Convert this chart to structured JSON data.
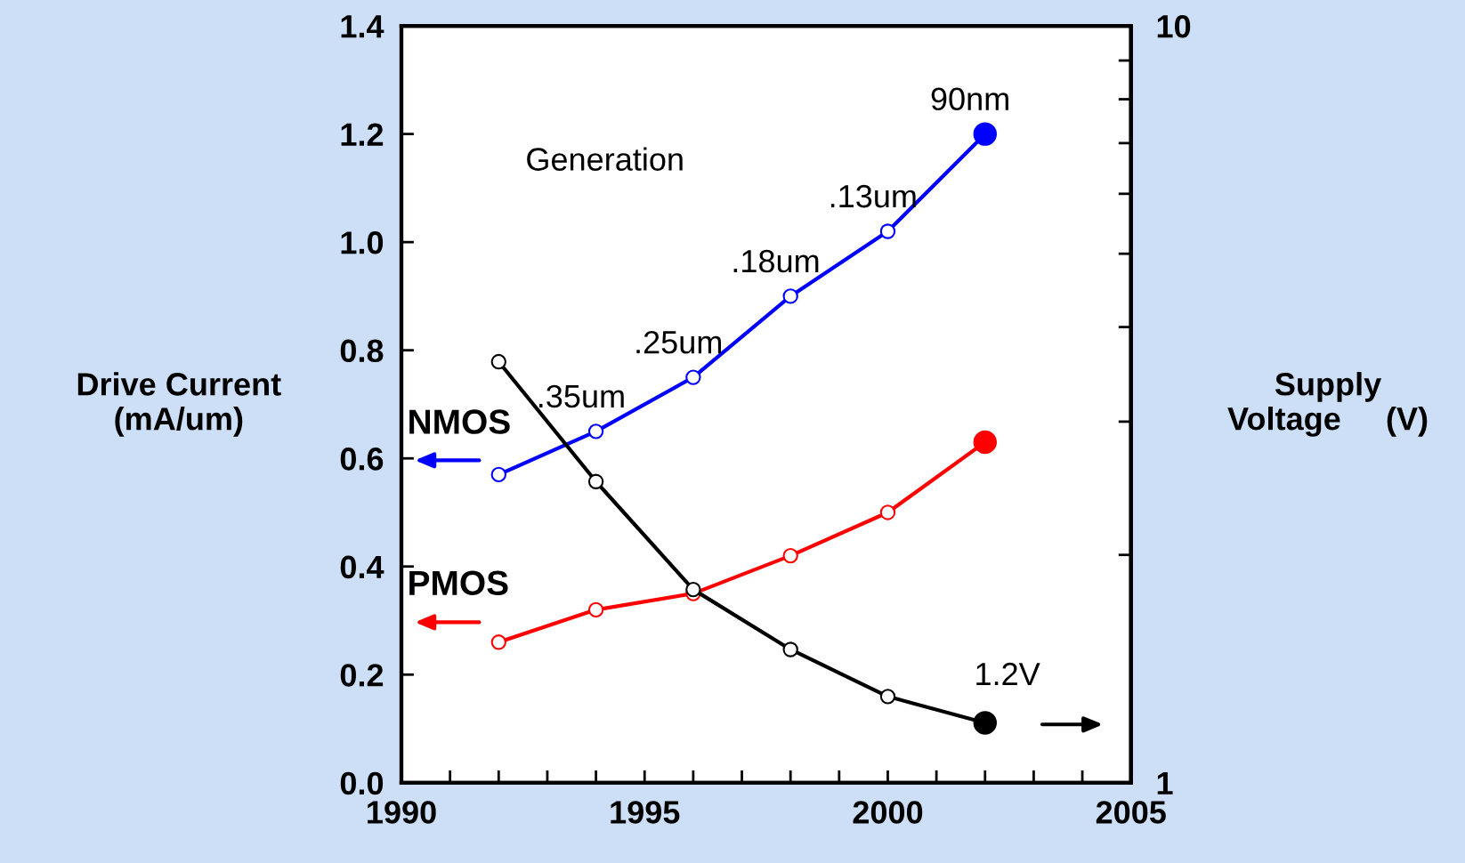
{
  "chart_data": {
    "type": "line",
    "ylabel": "Drive Current\n(mA/um)",
    "y2label": "Supply\nVoltage     (V)",
    "x": [
      1992,
      1994,
      1996,
      1998,
      2000,
      2002
    ],
    "series": [
      {
        "name": "NMOS",
        "color": "#0000ff",
        "values": [
          0.57,
          0.65,
          0.75,
          0.9,
          1.02,
          1.2
        ]
      },
      {
        "name": "PMOS",
        "color": "#ff0000",
        "values": [
          0.26,
          0.32,
          0.35,
          0.42,
          0.5,
          0.63
        ]
      },
      {
        "color": "#000000",
        "axis": "y2",
        "values": [
          3.6,
          2.5,
          1.8,
          1.5,
          1.3,
          1.2
        ]
      }
    ],
    "xlim": [
      1990,
      2005
    ],
    "xticks": [
      1990,
      {
        "value": 1991,
        "label": null
      },
      {
        "value": 1992,
        "label": null
      },
      {
        "value": 1993,
        "label": null
      },
      {
        "value": 1994,
        "label": null
      },
      1995,
      {
        "value": 1996,
        "label": null
      },
      {
        "value": 1997,
        "label": null
      },
      {
        "value": 1998,
        "label": null
      },
      {
        "value": 1999,
        "label": null
      },
      2000,
      {
        "value": 2001,
        "label": null
      },
      {
        "value": 2002,
        "label": null
      },
      {
        "value": 2003,
        "label": null
      },
      {
        "value": 2004,
        "label": null
      },
      2005
    ],
    "ylim": [
      0,
      1.4
    ],
    "yticks": [
      {
        "value": 0,
        "label": "0.0"
      },
      0.2,
      0.4,
      0.6,
      0.8,
      {
        "value": 1,
        "label": "1.0"
      },
      1.2,
      1.4
    ],
    "y2lim": [
      1,
      10
    ],
    "y2ticks": [
      1,
      {
        "value": 2,
        "label": null
      },
      {
        "value": 3,
        "label": null
      },
      {
        "value": 4,
        "label": null
      },
      {
        "value": 5,
        "label": null
      },
      {
        "value": 6,
        "label": null
      },
      {
        "value": 7,
        "label": null
      },
      {
        "value": 8,
        "label": null
      },
      {
        "value": 9,
        "label": null
      },
      10
    ],
    "log": "y2",
    "marker": "circle",
    "line_style": "solid",
    "grid": false,
    "legend": "left",
    "annotations": [
      "Generation",
      {
        "text": ".35um",
        "x": 1994,
        "y": 0.65
      },
      {
        "text": ".25um",
        "x": 1996,
        "y": 0.75
      },
      {
        "text": ".18um",
        "x": 1998,
        "y": 0.9
      },
      {
        "text": ".13um",
        "x": 2000,
        "y": 1.02
      },
      {
        "text": "90nm",
        "x": 2002,
        "y": 1.2
      },
      "1.2V"
    ]
  }
}
